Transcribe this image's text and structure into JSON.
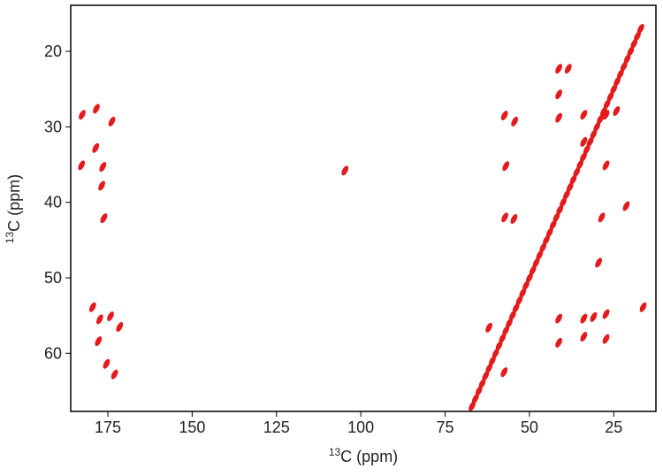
{
  "chart_data": {
    "type": "scatter",
    "xlabel_sup": "13",
    "xlabel": "C (ppm)",
    "ylabel_sup": "13",
    "ylabel": "C (ppm)",
    "color": "#e41a1c",
    "xlim": [
      186,
      12.5
    ],
    "ylim": [
      13.9,
      67.7
    ],
    "xticks": [
      175,
      150,
      125,
      100,
      75,
      50,
      25
    ],
    "yticks": [
      20,
      30,
      40,
      50,
      60
    ],
    "x": [
      17,
      18,
      19,
      20,
      21,
      22,
      23,
      24,
      25,
      26,
      27,
      28,
      29,
      30,
      31,
      32,
      33,
      34,
      35,
      36,
      37,
      38,
      39,
      40,
      41,
      42,
      43,
      44,
      45,
      46,
      47,
      48,
      49,
      50,
      51,
      52,
      53,
      54,
      55,
      56,
      57,
      58,
      59,
      60,
      61,
      62,
      63,
      64,
      65,
      66,
      67,
      182.6,
      182.8,
      178.6,
      178.4,
      173.8,
      176.5,
      176.2,
      176.8,
      179.5,
      177.4,
      174.2,
      177.8,
      175.4,
      173.0,
      171.5,
      104.7,
      54.4,
      57.4,
      57.0,
      54.6,
      57.3,
      62.0,
      57.5,
      41.3,
      41.3,
      41.3,
      41.3,
      41.3,
      33.9,
      33.9,
      33.9,
      33.9,
      27.3,
      27.3,
      28.6,
      27.3,
      27.3,
      21.3,
      16.3,
      24.2,
      38.5,
      31.0,
      29.5
    ],
    "values": [
      17,
      18,
      19,
      20,
      21,
      22,
      23,
      24,
      25,
      26,
      27,
      28,
      29,
      30,
      31,
      32,
      33,
      34,
      35,
      36,
      37,
      38,
      39,
      40,
      41,
      42,
      43,
      44,
      45,
      46,
      47,
      48,
      49,
      50,
      51,
      52,
      53,
      54,
      55,
      56,
      57,
      58,
      59,
      60,
      61,
      62,
      63,
      64,
      65,
      66,
      67,
      28.4,
      35.1,
      32.8,
      27.6,
      29.3,
      35.3,
      42.1,
      37.8,
      53.9,
      55.5,
      55.1,
      58.4,
      61.4,
      62.8,
      56.5,
      35.8,
      29.3,
      28.5,
      35.2,
      42.2,
      42.0,
      56.6,
      62.5,
      22.3,
      25.7,
      28.8,
      55.4,
      58.6,
      28.4,
      32.0,
      55.4,
      57.8,
      28.4,
      35.1,
      42.0,
      54.8,
      58.1,
      40.5,
      53.9,
      27.9,
      22.3,
      55.2,
      48.0
    ]
  }
}
